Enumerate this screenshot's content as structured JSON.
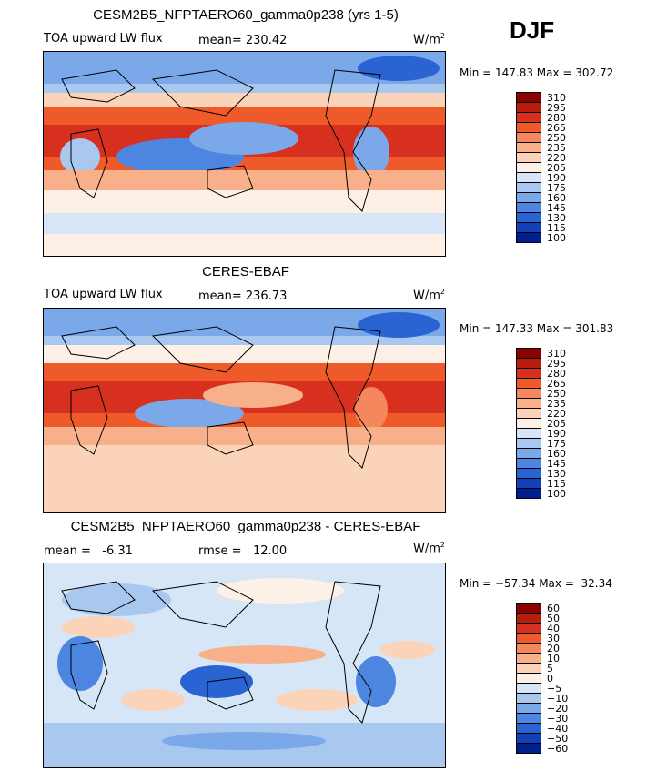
{
  "season": "DJF",
  "panels": [
    {
      "title": "CESM2B5_NFPTAERO60_gamma0p238 (yrs 1-5)",
      "left_label": "TOA upward LW flux",
      "mid_label": "mean= 230.42",
      "units": "W/m",
      "units_sup": "2",
      "minmax": "Min = 147.83 Max = 302.72",
      "colorbar_labels": [
        "310",
        "295",
        "280",
        "265",
        "250",
        "235",
        "220",
        "205",
        "190",
        "175",
        "160",
        "145",
        "130",
        "115",
        "100"
      ]
    },
    {
      "title": "CERES-EBAF",
      "left_label": "TOA upward LW flux",
      "mid_label": "mean= 236.73",
      "units": "W/m",
      "units_sup": "2",
      "minmax": "Min = 147.33 Max = 301.83",
      "colorbar_labels": [
        "310",
        "295",
        "280",
        "265",
        "250",
        "235",
        "220",
        "205",
        "190",
        "175",
        "160",
        "145",
        "130",
        "115",
        "100"
      ]
    },
    {
      "title": "CESM2B5_NFPTAERO60_gamma0p238 - CERES-EBAF",
      "left_label": "mean =   -6.31",
      "mid_label": "rmse =   12.00",
      "units": "W/m",
      "units_sup": "2",
      "minmax": "Min = −57.34 Max =  32.34",
      "colorbar_labels": [
        "60",
        "50",
        "40",
        "30",
        "20",
        "10",
        "5",
        "0",
        "−5",
        "−10",
        "−20",
        "−30",
        "−40",
        "−50",
        "−60"
      ]
    }
  ],
  "colors": {
    "scale": [
      "#8b0000",
      "#b71c0c",
      "#d7301f",
      "#ef5a2b",
      "#f4875c",
      "#f8b08a",
      "#fbd3b8",
      "#fdf0e6",
      "#d6e6f7",
      "#a9c8ef",
      "#7aa8e8",
      "#4d86e0",
      "#2a63d2",
      "#1240b8",
      "#001f8f"
    ]
  }
}
